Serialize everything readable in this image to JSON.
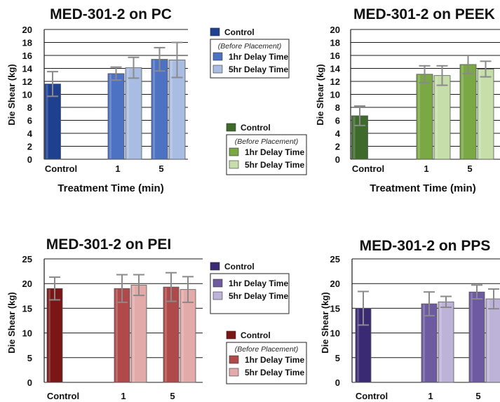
{
  "chart_data": [
    {
      "type": "bar",
      "title": "MED-301-2 on PC",
      "xlabel": "Treatment Time (min)",
      "ylabel": "Die Shear (kg)",
      "ylim": [
        0,
        20
      ],
      "yticks": [
        0,
        2,
        4,
        6,
        8,
        10,
        12,
        14,
        16,
        18,
        20
      ],
      "categories": [
        "Control",
        "1",
        "5"
      ],
      "grid": true,
      "legend_position": "right",
      "legend_subtitle": "(Before Placement)",
      "colors": {
        "control": "#1f3f8f",
        "delay1": "#4d72c4",
        "delay5": "#a9bde3"
      },
      "series": [
        {
          "name": "Control",
          "values": [
            11.6,
            null,
            null
          ],
          "errors": [
            1.9,
            null,
            null
          ]
        },
        {
          "name": "1hr Delay Time",
          "values": [
            null,
            13.2,
            15.4
          ],
          "errors": [
            null,
            1.0,
            1.8
          ]
        },
        {
          "name": "5hr Delay Time",
          "values": [
            null,
            14.1,
            15.3
          ],
          "errors": [
            null,
            1.6,
            2.7
          ]
        }
      ]
    },
    {
      "type": "bar",
      "title": "MED-301-2 on PEEK",
      "xlabel": "Treatment Time (min)",
      "ylabel": "Die Shear (kg)",
      "ylim": [
        0,
        20
      ],
      "yticks": [
        0,
        2,
        4,
        6,
        8,
        10,
        12,
        14,
        16,
        18,
        20
      ],
      "categories": [
        "Control",
        "1",
        "5"
      ],
      "grid": true,
      "legend_position": "left",
      "legend_subtitle": "(Before Placement)",
      "colors": {
        "control": "#3e6b2c",
        "delay1": "#79a844",
        "delay5": "#c6deaa"
      },
      "series": [
        {
          "name": "Control",
          "values": [
            6.7,
            null,
            null
          ],
          "errors": [
            1.5,
            null,
            null
          ]
        },
        {
          "name": "1hr Delay Time",
          "values": [
            null,
            13.1,
            14.6
          ],
          "errors": [
            null,
            1.3,
            1.4
          ]
        },
        {
          "name": "5hr Delay Time",
          "values": [
            null,
            12.9,
            13.9
          ],
          "errors": [
            null,
            1.5,
            1.2
          ]
        }
      ]
    },
    {
      "type": "bar",
      "title": "MED-301-2 on PEI",
      "xlabel": "",
      "ylabel": "Die Shear (kg)",
      "ylim": [
        0,
        25
      ],
      "yticks": [
        0,
        5,
        10,
        15,
        20,
        25
      ],
      "categories": [
        "Control",
        "1",
        "5"
      ],
      "grid": true,
      "legend_position": "right",
      "legend_subtitle": "(Before Placement)",
      "colors": {
        "control": "#7a1616",
        "delay1": "#b04a4a",
        "delay5": "#e3aaaa"
      },
      "series": [
        {
          "name": "Control",
          "values": [
            19.0,
            null,
            null
          ],
          "errors": [
            2.3,
            null,
            null
          ]
        },
        {
          "name": "1hr Delay Time",
          "values": [
            null,
            19.0,
            19.3
          ],
          "errors": [
            null,
            2.8,
            2.9
          ]
        },
        {
          "name": "5hr Delay Time",
          "values": [
            null,
            19.7,
            18.8
          ],
          "errors": [
            null,
            2.1,
            2.6
          ]
        }
      ]
    },
    {
      "type": "bar",
      "title": "MED-301-2 on PPS",
      "xlabel": "",
      "ylabel": "Die Shear (kg)",
      "ylim": [
        0,
        25
      ],
      "yticks": [
        0,
        5,
        10,
        15,
        20,
        25
      ],
      "categories": [
        "Control",
        "1",
        "5"
      ],
      "grid": true,
      "legend_position": "left",
      "legend_subtitle": "",
      "colors": {
        "control": "#3a2a73",
        "delay1": "#6e5aa0",
        "delay5": "#bdb2d8"
      },
      "series": [
        {
          "name": "Control",
          "values": [
            15.0,
            null,
            null
          ],
          "errors": [
            3.4,
            null,
            null
          ]
        },
        {
          "name": "1hr Delay Time",
          "values": [
            null,
            15.9,
            18.3
          ],
          "errors": [
            null,
            2.4,
            1.4
          ]
        },
        {
          "name": "5hr Delay Time",
          "values": [
            null,
            16.3,
            16.9
          ],
          "errors": [
            null,
            1.1,
            2.0
          ]
        }
      ]
    }
  ]
}
